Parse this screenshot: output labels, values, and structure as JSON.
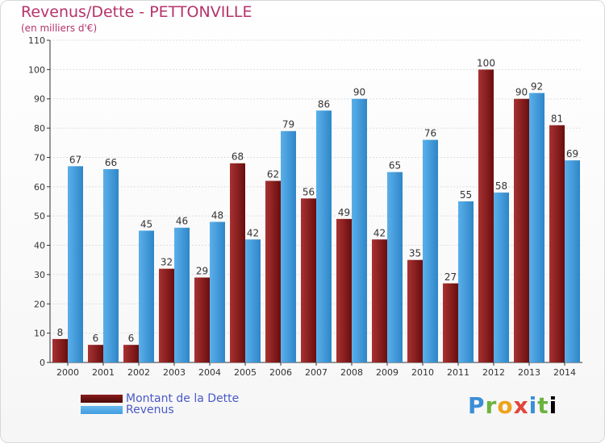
{
  "header": {
    "title": "Revenus/Dette - PETTONVILLE",
    "subtitle": "(en milliers d'€)"
  },
  "legend": {
    "dette_label": "Montant de la Dette",
    "revenus_label": "Revenus"
  },
  "logo": {
    "text": "Proxiti"
  },
  "colors": {
    "dette": "#8b1a1a",
    "revenus": "#3f9de0",
    "axis": "#333333",
    "grid": "#dddddd",
    "label": "#333333"
  },
  "chart_data": {
    "type": "bar",
    "title": "Revenus/Dette - PETTONVILLE",
    "subtitle": "(en milliers d'€)",
    "categories": [
      "2000",
      "2001",
      "2002",
      "2003",
      "2004",
      "2005",
      "2006",
      "2007",
      "2008",
      "2009",
      "2010",
      "2011",
      "2012",
      "2013",
      "2014"
    ],
    "series": [
      {
        "name": "Montant de la Dette",
        "values": [
          8,
          6,
          6,
          32,
          29,
          68,
          62,
          56,
          49,
          42,
          35,
          27,
          100,
          90,
          81
        ]
      },
      {
        "name": "Revenus",
        "values": [
          67,
          66,
          45,
          46,
          48,
          42,
          79,
          86,
          90,
          65,
          76,
          55,
          58,
          92,
          69
        ]
      }
    ],
    "ylim": [
      0,
      110
    ],
    "yticks": [
      0,
      10,
      20,
      30,
      40,
      50,
      60,
      70,
      80,
      90,
      100,
      110
    ],
    "grid": true,
    "legend_position": "bottom-left"
  }
}
